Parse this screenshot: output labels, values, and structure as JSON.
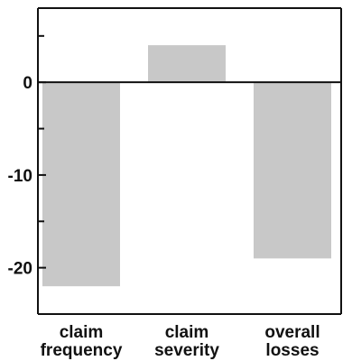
{
  "chart_data": {
    "type": "bar",
    "title": "",
    "xlabel": "",
    "ylabel": "",
    "categories": [
      [
        "claim",
        "frequency"
      ],
      [
        "claim",
        "severity"
      ],
      [
        "overall",
        "losses"
      ]
    ],
    "values": [
      -22,
      4,
      -19
    ],
    "ylim": [
      -25,
      8
    ],
    "major_ticks": [
      0,
      -10,
      -20
    ],
    "tick_labels": [
      "0",
      "-10",
      "-20"
    ],
    "minor_ticks": [
      5,
      -5,
      -15
    ],
    "grid": false,
    "legend": "none",
    "colors": {
      "bar": "#c8c8c8",
      "axis": "#111111",
      "background": "#ffffff"
    }
  }
}
